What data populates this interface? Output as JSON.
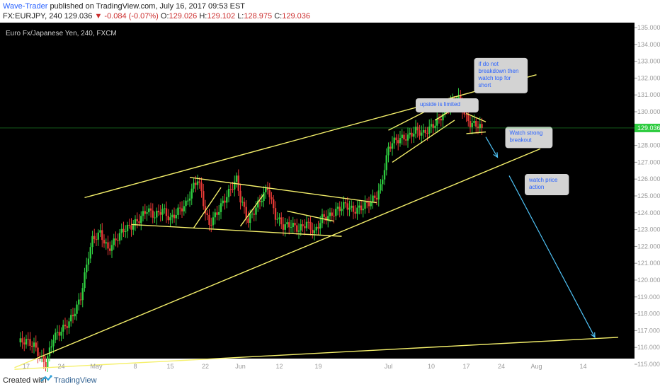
{
  "header": {
    "author": "Wave-Trader",
    "published": "published on TradingView.com, July 16, 2017 09:53 EST",
    "symbol": "FX:EURJPY, 240",
    "last": "129.036",
    "arrow": "▼",
    "change": "-0.084 (-0.07%)",
    "open_label": "O:",
    "open": "129.026",
    "high_label": "H:",
    "high": "129.102",
    "low_label": "L:",
    "low": "128.975",
    "close_label": "C:",
    "close": "129.036"
  },
  "footer": {
    "created_with": "Created with",
    "brand": "TradingView"
  },
  "colors": {
    "background": "#000000",
    "up": "#2ecc40",
    "down": "#e53935",
    "trendline": "#f5f06b",
    "arrow": "#4fc3f7",
    "note_bg": "#d3d3d3",
    "note_text": "#2962ff"
  },
  "chart_data": {
    "type": "candlestick",
    "title": "Euro Fx/Japanese Yen, 240, FXCM",
    "ylim": [
      115,
      135
    ],
    "y_ticks": [
      "135.000",
      "134.000",
      "133.000",
      "132.000",
      "131.000",
      "130.000",
      "129.000",
      "128.000",
      "127.000",
      "126.000",
      "125.000",
      "124.000",
      "123.000",
      "122.000",
      "121.000",
      "120.000",
      "119.000",
      "118.000",
      "117.000",
      "116.000",
      "115.000"
    ],
    "x_ticks": [
      "17",
      "24",
      "May",
      "8",
      "15",
      "22",
      "Jun",
      "12",
      "19",
      "Jul",
      "10",
      "17",
      "24",
      "Aug",
      "14"
    ],
    "last_price": "129.036",
    "price_path": [
      [
        4,
        116.3
      ],
      [
        6,
        116.4
      ],
      [
        8,
        116.1
      ],
      [
        10,
        115.3
      ],
      [
        11,
        115.0
      ],
      [
        12,
        115.8
      ],
      [
        13,
        116.6
      ],
      [
        15,
        117.0
      ],
      [
        17,
        117.5
      ],
      [
        19,
        118.4
      ],
      [
        20,
        119.0
      ],
      [
        22,
        121.5
      ],
      [
        23,
        122.4
      ],
      [
        25,
        122.8
      ],
      [
        27,
        121.8
      ],
      [
        29,
        122.4
      ],
      [
        31,
        123.0
      ],
      [
        33,
        123.2
      ],
      [
        35,
        123.6
      ],
      [
        37,
        124.2
      ],
      [
        39,
        123.8
      ],
      [
        41,
        124.2
      ],
      [
        43,
        123.6
      ],
      [
        45,
        124.1
      ],
      [
        47,
        124.5
      ],
      [
        49,
        125.6
      ],
      [
        50,
        126.0
      ],
      [
        51,
        125.2
      ],
      [
        52,
        124.0
      ],
      [
        53,
        123.3
      ],
      [
        55,
        124.0
      ],
      [
        57,
        124.8
      ],
      [
        59,
        125.6
      ],
      [
        60,
        126.0
      ],
      [
        61,
        124.8
      ],
      [
        62,
        124.2
      ],
      [
        63,
        123.5
      ],
      [
        65,
        124.3
      ],
      [
        67,
        125.1
      ],
      [
        68,
        125.5
      ],
      [
        69,
        124.6
      ],
      [
        70,
        123.8
      ],
      [
        72,
        123.2
      ],
      [
        74,
        123.3
      ],
      [
        76,
        123.0
      ],
      [
        78,
        123.4
      ],
      [
        80,
        122.8
      ],
      [
        82,
        123.7
      ],
      [
        84,
        123.8
      ],
      [
        86,
        124.2
      ],
      [
        88,
        124.5
      ],
      [
        90,
        124.1
      ],
      [
        92,
        124.3
      ],
      [
        94,
        124.6
      ],
      [
        96,
        125.0
      ],
      [
        97,
        125.5
      ],
      [
        98,
        126.7
      ],
      [
        99,
        127.8
      ],
      [
        100,
        128.2
      ],
      [
        102,
        128.4
      ],
      [
        104,
        128.5
      ],
      [
        106,
        128.9
      ],
      [
        108,
        128.7
      ],
      [
        110,
        129.1
      ],
      [
        112,
        129.5
      ],
      [
        114,
        130.3
      ],
      [
        116,
        130.6
      ],
      [
        117,
        130.8
      ],
      [
        118,
        130.2
      ],
      [
        119,
        129.6
      ],
      [
        120,
        129.3
      ],
      [
        122,
        129.2
      ],
      [
        123,
        129.04
      ]
    ],
    "trendlines": [
      {
        "from": [
          21,
          124.9
        ],
        "to": [
          137,
          132.2
        ]
      },
      {
        "from": [
          3,
          114.8
        ],
        "to": [
          138,
          127.8
        ]
      },
      {
        "from": [
          3,
          114.7
        ],
        "to": [
          158,
          116.6
        ]
      },
      {
        "from": [
          48,
          126.1
        ],
        "to": [
          96,
          124.6
        ]
      },
      {
        "from": [
          33,
          123.3
        ],
        "to": [
          87,
          122.6
        ]
      },
      {
        "from": [
          73,
          124.1
        ],
        "to": [
          85,
          123.5
        ]
      },
      {
        "from": [
          49,
          123.1
        ],
        "to": [
          56,
          125.5
        ]
      },
      {
        "from": [
          61,
          123.2
        ],
        "to": [
          67,
          125.1
        ]
      },
      {
        "from": [
          99,
          128.9
        ],
        "to": [
          116,
          130.9
        ]
      },
      {
        "from": [
          100,
          127.0
        ],
        "to": [
          116,
          129.5
        ]
      },
      {
        "from": [
          111,
          129.5
        ],
        "to": [
          118,
          130.5
        ]
      },
      {
        "from": [
          119,
          129.9
        ],
        "to": [
          124,
          129.4
        ]
      },
      {
        "from": [
          119,
          128.7
        ],
        "to": [
          124,
          128.8
        ]
      }
    ],
    "forecast_arrows": [
      {
        "from": [
          124,
          128.5
        ],
        "to": [
          127,
          127.3
        ]
      },
      {
        "from": [
          130,
          126.2
        ],
        "to": [
          152,
          116.6
        ]
      }
    ],
    "annotations": [
      {
        "text": [
          "upside is limited"
        ],
        "at": [
          106,
          130.8
        ]
      },
      {
        "text": [
          "if do not",
          "breakdown then",
          "watch top for",
          "short"
        ],
        "at": [
          121,
          133.2
        ]
      },
      {
        "text": [
          "Watch strong",
          "breakout"
        ],
        "at": [
          129,
          129.1
        ]
      },
      {
        "text": [
          "watch price",
          "action"
        ],
        "at": [
          134,
          126.3
        ]
      }
    ]
  }
}
